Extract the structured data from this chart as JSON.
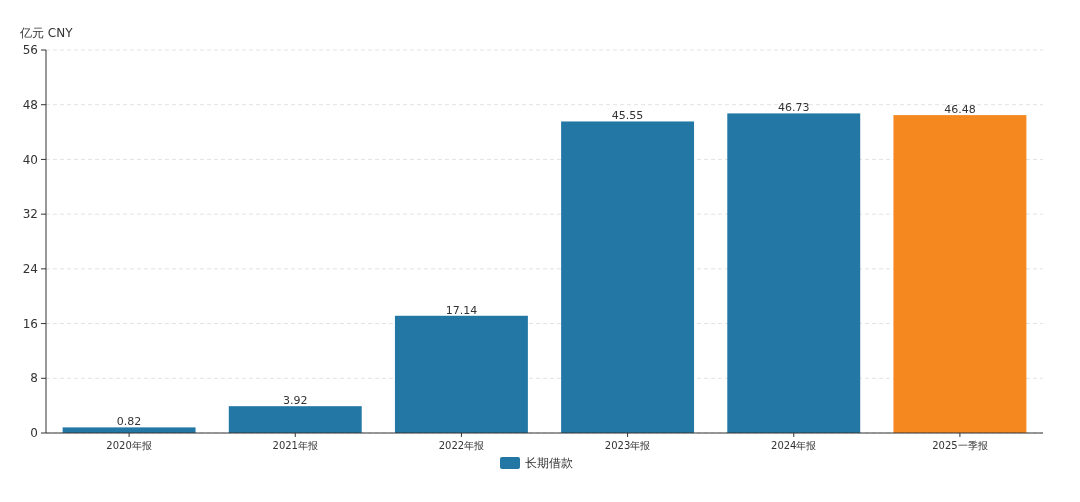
{
  "chart_data": {
    "type": "bar",
    "ylabel": "亿元  CNY",
    "categories": [
      "2020年报",
      "2021年报",
      "2022年报",
      "2023年报",
      "2024年报",
      "2025一季报"
    ],
    "series": [
      {
        "name": "长期借款",
        "color": "#2277a4",
        "colors": [
          "#2277a4",
          "#2277a4",
          "#2277a4",
          "#2277a4",
          "#2277a4",
          "#f5891f"
        ],
        "values": [
          0.82,
          3.92,
          17.14,
          45.55,
          46.73,
          46.48
        ]
      }
    ],
    "ylim": [
      0,
      56
    ],
    "yticks": [
      0,
      8,
      16,
      24,
      32,
      40,
      48,
      56
    ],
    "grid": "y",
    "legend": "bottom",
    "data_labels": true
  }
}
